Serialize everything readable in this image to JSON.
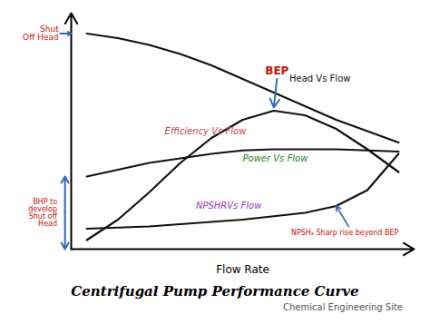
{
  "chart_data": {
    "type": "line",
    "title": "Centrifugal Pump Performance Curve",
    "subtitle": "Chemical Engineering Site",
    "xlabel": "Flow Rate",
    "x": [
      0.0,
      0.1,
      0.2,
      0.3,
      0.4,
      0.5,
      0.6,
      0.7,
      0.8,
      0.9,
      1.0
    ],
    "series": [
      {
        "color": "#111111",
        "values": [
          0.93,
          0.91,
          0.88,
          0.84,
          0.79,
          0.73,
          0.67,
          0.61,
          0.55,
          0.5,
          0.45
        ]
      },
      {
        "color": "#111111",
        "values": [
          0.02,
          0.11,
          0.23,
          0.36,
          0.47,
          0.55,
          0.59,
          0.57,
          0.51,
          0.42,
          0.32
        ]
      },
      {
        "color": "#111111",
        "values": [
          0.3,
          0.33,
          0.36,
          0.38,
          0.4,
          0.415,
          0.42,
          0.42,
          0.42,
          0.415,
          0.41
        ]
      },
      {
        "color": "#111111",
        "values": [
          0.07,
          0.075,
          0.08,
          0.09,
          0.1,
          0.11,
          0.125,
          0.14,
          0.17,
          0.24,
          0.4
        ]
      }
    ],
    "xlim": [
      -0.05,
      1.05
    ],
    "ylim": [
      -0.02,
      1.02
    ],
    "xticks": [],
    "yticks": [],
    "tick_labels": false,
    "grid": false,
    "annotations": [
      {
        "text": "Head Vs Flow",
        "color": "#111111"
      },
      {
        "text": "Efficiency Vs Flow",
        "color": "#cc4444"
      },
      {
        "text": "Power Vs Flow",
        "color": "#228B22"
      },
      {
        "text": "NPSHRVs Flow",
        "color": "#9933cc"
      },
      {
        "text": "BEP",
        "color": "#cc1100"
      },
      {
        "text": "NPSHₐ Sharp rise beyond BEP",
        "color": "#cc1100"
      },
      {
        "text": "Shut\nOff Head",
        "color": "#cc1100"
      },
      {
        "text": "BHP to\ndevelop\nShut off\nHead",
        "color": "#cc1100"
      }
    ]
  }
}
